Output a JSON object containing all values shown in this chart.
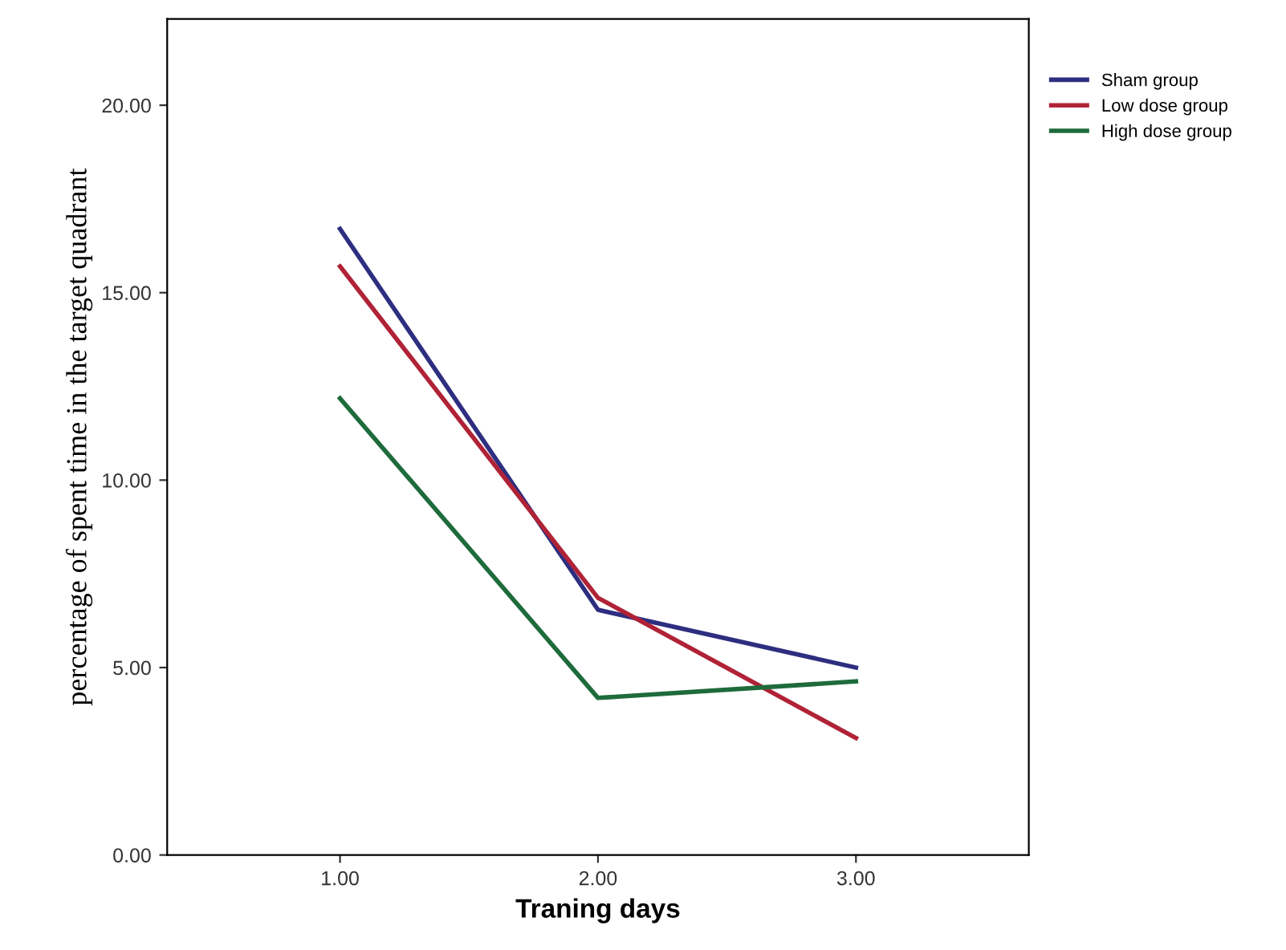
{
  "chart_data": {
    "type": "line",
    "xlabel": "Traning days",
    "ylabel": "percentage of spent time in the target quadrant",
    "x": [
      1,
      2,
      3
    ],
    "series": [
      {
        "name": "Sham group",
        "color": "#2e2e80",
        "values": [
          16.7,
          6.54,
          5.0
        ]
      },
      {
        "name": "Low dose group",
        "color": "#b02236",
        "values": [
          15.7,
          6.86,
          3.12
        ]
      },
      {
        "name": "High dose group",
        "color": "#1e6b3c",
        "values": [
          12.18,
          4.19,
          4.63
        ]
      }
    ],
    "xlim": [
      0.33,
      3.67
    ],
    "xticks": [
      {
        "value": 1,
        "label": "1.00"
      },
      {
        "value": 2,
        "label": "2.00"
      },
      {
        "value": 3,
        "label": "3.00"
      }
    ],
    "ylim": [
      0,
      22.3
    ],
    "yticks": [
      {
        "value": 0,
        "label": "0.00"
      },
      {
        "value": 5,
        "label": "5.00"
      },
      {
        "value": 10,
        "label": "10.00"
      },
      {
        "value": 15,
        "label": "15.00"
      },
      {
        "value": 20,
        "label": "20.00"
      }
    ],
    "legend": "top right",
    "grid": false,
    "marker": "none",
    "line_style": "solid"
  }
}
